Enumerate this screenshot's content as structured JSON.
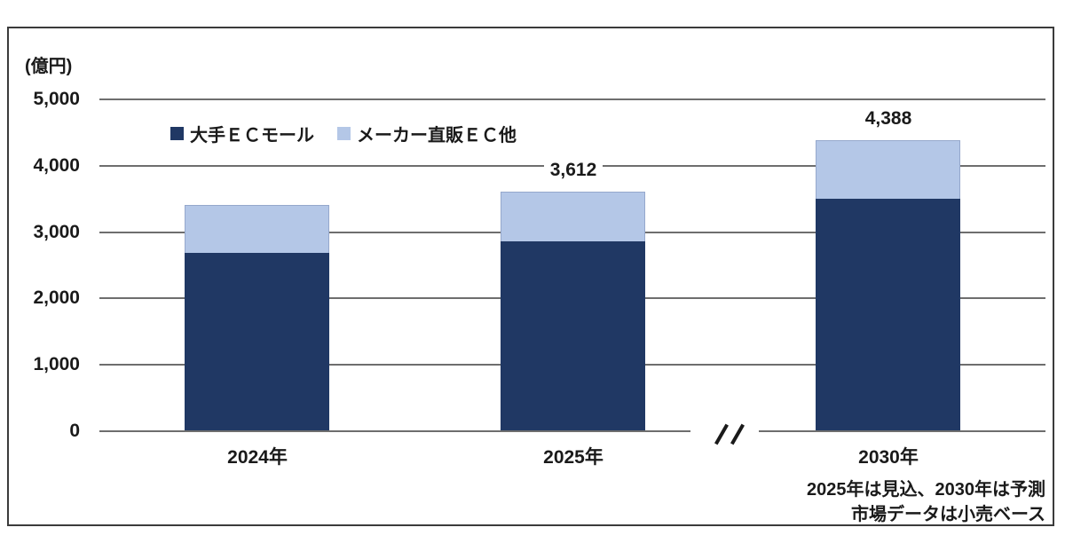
{
  "chart_data": {
    "type": "bar",
    "subtype": "stacked",
    "title": "",
    "unit_label": "(億円)",
    "categories": [
      "2024年",
      "2025年",
      "2030年"
    ],
    "series": [
      {
        "name": "大手ＥＣモール",
        "color": "#203864",
        "values": [
          2690,
          2860,
          3500
        ]
      },
      {
        "name": "メーカー直販ＥＣ他",
        "color": "#B4C7E7",
        "values": [
          720,
          752,
          888
        ]
      }
    ],
    "totals": [
      3410,
      3612,
      4388
    ],
    "total_labels": [
      "",
      "3,612",
      "4,388"
    ],
    "y_ticks": [
      {
        "label": "5,000",
        "value": 5000
      },
      {
        "label": "4,000",
        "value": 4000
      },
      {
        "label": "3,000",
        "value": 3000
      },
      {
        "label": "2,000",
        "value": 2000
      },
      {
        "label": "1,000",
        "value": 1000
      },
      {
        "label": "0",
        "value": 0
      }
    ],
    "ylim": [
      0,
      5000
    ],
    "grid": true,
    "legend_position": "top-center",
    "axis_break_mark": "//",
    "footnotes": [
      "2025年は見込、2030年は予測",
      "市場データは小売ベース"
    ]
  },
  "colors": {
    "grid": "#6e6e6e",
    "border": "#3b3b3b",
    "text": "#1a1a1a",
    "background": "#ffffff"
  }
}
